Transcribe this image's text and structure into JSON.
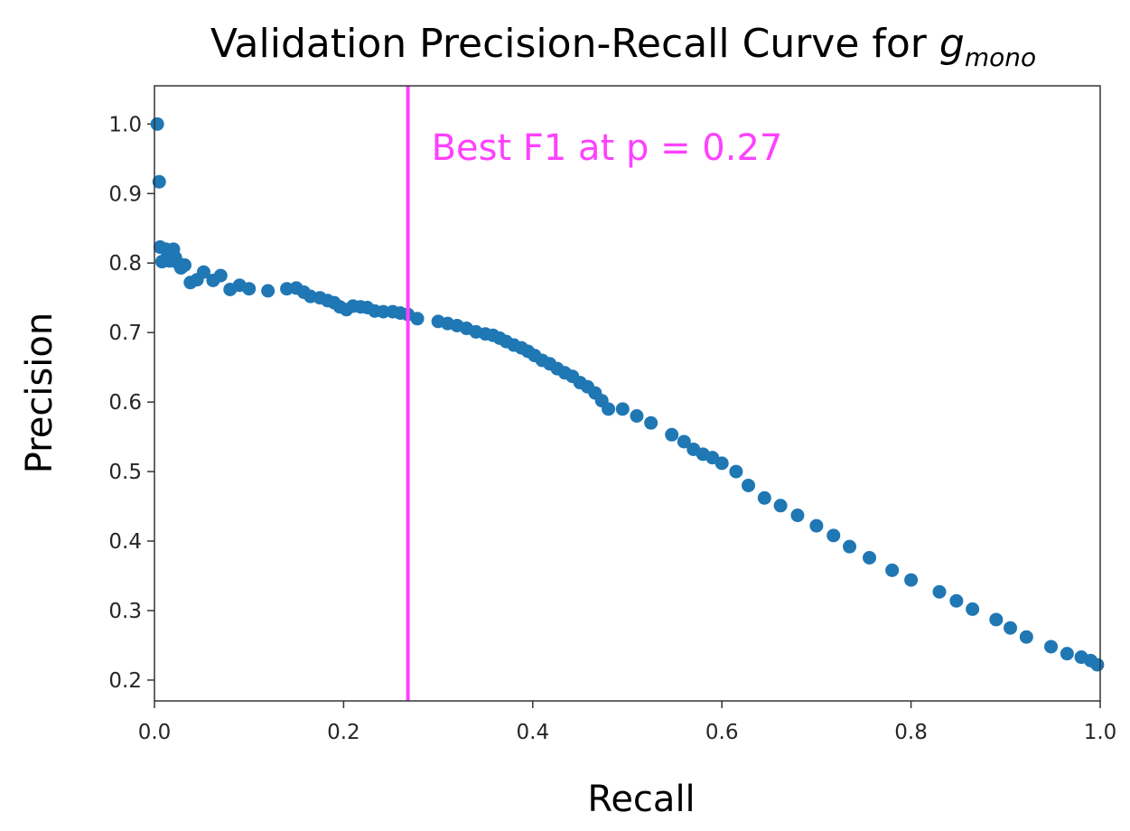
{
  "chart_data": {
    "type": "scatter",
    "title_main": "Validation Precision-Recall Curve for ",
    "title_var": "g",
    "title_sub": "mono",
    "xlabel": "Recall",
    "ylabel": "Precision",
    "xlim": [
      0,
      1
    ],
    "ylim": [
      0.17,
      1.055
    ],
    "xticks": [
      0.0,
      0.2,
      0.4,
      0.6,
      0.8,
      1.0
    ],
    "xtick_labels": [
      "0.0",
      "0.2",
      "0.4",
      "0.6",
      "0.8",
      "1.0"
    ],
    "yticks": [
      0.2,
      0.3,
      0.4,
      0.5,
      0.6,
      0.7,
      0.8,
      0.9,
      1.0
    ],
    "ytick_labels": [
      "0.2",
      "0.3",
      "0.4",
      "0.5",
      "0.6",
      "0.7",
      "0.8",
      "0.9",
      "1.0"
    ],
    "grid": false,
    "point_color": "#1f77b4",
    "vline": {
      "x": 0.268,
      "color": "#ff40ff"
    },
    "annotation": {
      "text": "Best F1 at p = 0.27",
      "color": "#ff40ff"
    },
    "points": [
      [
        0.003,
        1.0
      ],
      [
        0.005,
        0.917
      ],
      [
        0.006,
        0.823
      ],
      [
        0.008,
        0.802
      ],
      [
        0.012,
        0.82
      ],
      [
        0.014,
        0.81
      ],
      [
        0.016,
        0.803
      ],
      [
        0.018,
        0.815
      ],
      [
        0.02,
        0.82
      ],
      [
        0.022,
        0.808
      ],
      [
        0.025,
        0.8
      ],
      [
        0.028,
        0.793
      ],
      [
        0.032,
        0.797
      ],
      [
        0.038,
        0.772
      ],
      [
        0.045,
        0.776
      ],
      [
        0.052,
        0.787
      ],
      [
        0.062,
        0.775
      ],
      [
        0.07,
        0.782
      ],
      [
        0.08,
        0.762
      ],
      [
        0.09,
        0.768
      ],
      [
        0.1,
        0.763
      ],
      [
        0.12,
        0.76
      ],
      [
        0.14,
        0.763
      ],
      [
        0.15,
        0.764
      ],
      [
        0.158,
        0.758
      ],
      [
        0.165,
        0.752
      ],
      [
        0.175,
        0.75
      ],
      [
        0.183,
        0.746
      ],
      [
        0.19,
        0.743
      ],
      [
        0.196,
        0.737
      ],
      [
        0.203,
        0.733
      ],
      [
        0.21,
        0.738
      ],
      [
        0.218,
        0.737
      ],
      [
        0.225,
        0.736
      ],
      [
        0.233,
        0.731
      ],
      [
        0.242,
        0.73
      ],
      [
        0.252,
        0.73
      ],
      [
        0.26,
        0.728
      ],
      [
        0.268,
        0.726
      ],
      [
        0.278,
        0.72
      ],
      [
        0.3,
        0.716
      ],
      [
        0.31,
        0.713
      ],
      [
        0.32,
        0.71
      ],
      [
        0.33,
        0.706
      ],
      [
        0.34,
        0.701
      ],
      [
        0.35,
        0.698
      ],
      [
        0.358,
        0.696
      ],
      [
        0.365,
        0.692
      ],
      [
        0.372,
        0.687
      ],
      [
        0.38,
        0.682
      ],
      [
        0.388,
        0.678
      ],
      [
        0.395,
        0.673
      ],
      [
        0.402,
        0.667
      ],
      [
        0.41,
        0.66
      ],
      [
        0.418,
        0.655
      ],
      [
        0.426,
        0.648
      ],
      [
        0.434,
        0.642
      ],
      [
        0.442,
        0.637
      ],
      [
        0.45,
        0.628
      ],
      [
        0.458,
        0.622
      ],
      [
        0.466,
        0.613
      ],
      [
        0.473,
        0.602
      ],
      [
        0.48,
        0.59
      ],
      [
        0.495,
        0.59
      ],
      [
        0.51,
        0.58
      ],
      [
        0.525,
        0.57
      ],
      [
        0.547,
        0.553
      ],
      [
        0.56,
        0.543
      ],
      [
        0.57,
        0.532
      ],
      [
        0.58,
        0.525
      ],
      [
        0.59,
        0.52
      ],
      [
        0.6,
        0.512
      ],
      [
        0.615,
        0.5
      ],
      [
        0.628,
        0.48
      ],
      [
        0.645,
        0.462
      ],
      [
        0.662,
        0.451
      ],
      [
        0.68,
        0.437
      ],
      [
        0.7,
        0.422
      ],
      [
        0.718,
        0.408
      ],
      [
        0.735,
        0.392
      ],
      [
        0.756,
        0.376
      ],
      [
        0.78,
        0.358
      ],
      [
        0.8,
        0.344
      ],
      [
        0.83,
        0.327
      ],
      [
        0.848,
        0.314
      ],
      [
        0.865,
        0.302
      ],
      [
        0.89,
        0.287
      ],
      [
        0.905,
        0.275
      ],
      [
        0.922,
        0.262
      ],
      [
        0.948,
        0.248
      ],
      [
        0.965,
        0.238
      ],
      [
        0.98,
        0.233
      ],
      [
        0.99,
        0.228
      ],
      [
        0.997,
        0.222
      ]
    ]
  }
}
